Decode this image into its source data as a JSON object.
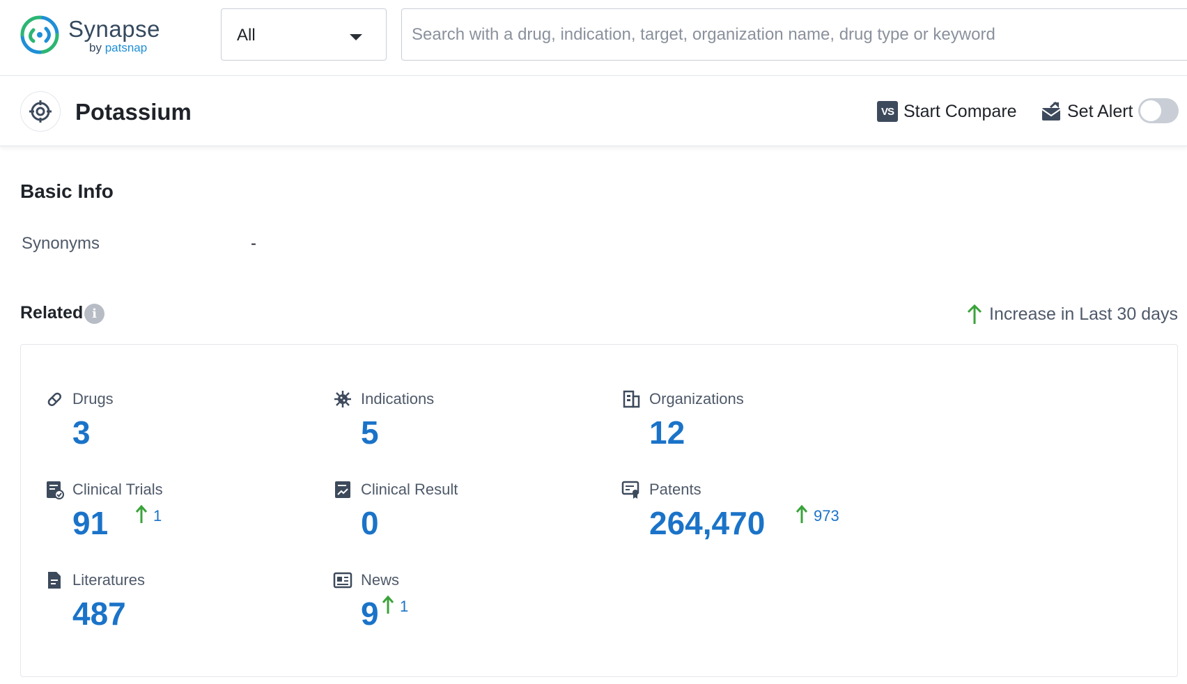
{
  "brand": {
    "name": "Synapse",
    "by": "by",
    "by_brand": "patsnap"
  },
  "search": {
    "scope_value": "All",
    "placeholder": "Search with a drug, indication, target, organization name, drug type or keyword"
  },
  "entity": {
    "title": "Potassium",
    "icon": "target-icon",
    "compare_badge": "VS",
    "compare_label": "Start Compare",
    "alert_label": "Set Alert",
    "alert_enabled": false
  },
  "basic_info": {
    "title": "Basic Info",
    "synonyms_label": "Synonyms",
    "synonyms_value": "-"
  },
  "related": {
    "title": "Related",
    "legend": "Increase in Last 30 days",
    "stats": {
      "drugs": {
        "label": "Drugs",
        "value": "3",
        "icon": "pill-icon"
      },
      "indications": {
        "label": "Indications",
        "value": "5",
        "icon": "virus-icon"
      },
      "organizations": {
        "label": "Organizations",
        "value": "12",
        "icon": "building-icon"
      },
      "clinical_trials": {
        "label": "Clinical Trials",
        "value": "91",
        "delta": "1",
        "icon": "clinical-trial-icon"
      },
      "clinical_result": {
        "label": "Clinical Result",
        "value": "0",
        "icon": "chart-report-icon"
      },
      "patents": {
        "label": "Patents",
        "value": "264,470",
        "delta": "973",
        "icon": "patent-certificate-icon"
      },
      "literatures": {
        "label": "Literatures",
        "value": "487",
        "icon": "document-icon"
      },
      "news": {
        "label": "News",
        "value": "9",
        "delta": "1",
        "icon": "newspaper-icon"
      }
    }
  },
  "colors": {
    "accent": "#1a73c8",
    "increase": "#3aa33a",
    "icon": "#3d4a5c"
  }
}
